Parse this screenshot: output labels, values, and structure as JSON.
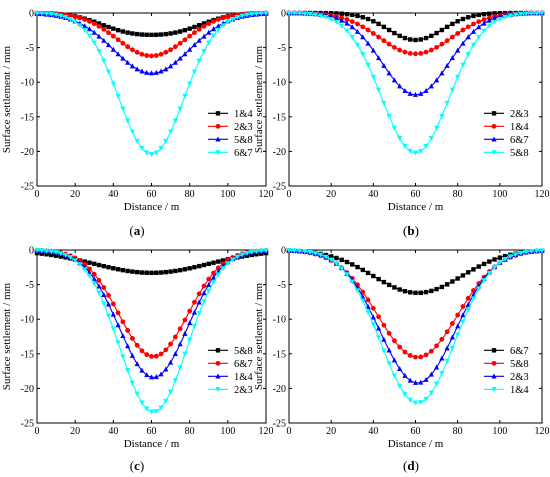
{
  "chart_data": [
    {
      "panel_label": "(a)",
      "type": "line",
      "xlabel": "Distance / m",
      "ylabel": "Surface settlement / mm",
      "xlim": [
        0,
        120
      ],
      "ylim": [
        -25,
        0
      ],
      "xticks": [
        "0",
        "20",
        "40",
        "60",
        "80",
        "100",
        "120"
      ],
      "yticks": [
        "0",
        "-5",
        "-10",
        "-15",
        "-20",
        "-25"
      ],
      "legend_position": "right",
      "series": [
        {
          "name": "1&4",
          "color": "#000000",
          "marker": "square",
          "profile": "double",
          "peak": -2.1,
          "center": 60,
          "width": 18
        },
        {
          "name": "2&3",
          "color": "#ff0000",
          "marker": "circle",
          "profile": "gauss",
          "peak": -6.2,
          "center": 60,
          "width": 18
        },
        {
          "name": "5&8",
          "color": "#0000ff",
          "marker": "triangle",
          "profile": "gauss",
          "peak": -8.7,
          "center": 60,
          "width": 20
        },
        {
          "name": "6&7",
          "color": "#00ffff",
          "marker": "triangle-down",
          "profile": "gauss",
          "peak": -20.4,
          "center": 60,
          "width": 17
        }
      ]
    },
    {
      "panel_label": "(b)",
      "type": "line",
      "xlabel": "Distance / m",
      "ylabel": "Surface settlement / mm",
      "xlim": [
        0,
        120
      ],
      "ylim": [
        -25,
        0
      ],
      "xticks": [
        "0",
        "20",
        "40",
        "60",
        "80",
        "100",
        "120"
      ],
      "yticks": [
        "0",
        "-5",
        "-10",
        "-15",
        "-20",
        "-25"
      ],
      "legend_position": "right",
      "series": [
        {
          "name": "2&3",
          "color": "#000000",
          "marker": "square",
          "profile": "gauss",
          "peak": -3.9,
          "center": 60,
          "width": 13
        },
        {
          "name": "1&4",
          "color": "#ff0000",
          "marker": "circle",
          "profile": "gauss",
          "peak": -5.9,
          "center": 60,
          "width": 17
        },
        {
          "name": "6&7",
          "color": "#0000ff",
          "marker": "triangle",
          "profile": "gauss",
          "peak": -11.8,
          "center": 60,
          "width": 16
        },
        {
          "name": "5&8",
          "color": "#00ffff",
          "marker": "triangle-down",
          "profile": "gauss",
          "peak": -20.2,
          "center": 60,
          "width": 16
        }
      ]
    },
    {
      "panel_label": "(c)",
      "type": "line",
      "xlabel": "Distance / m",
      "ylabel": "Surface settlement / mm",
      "xlim": [
        0,
        120
      ],
      "ylim": [
        -25,
        0
      ],
      "xticks": [
        "0",
        "20",
        "40",
        "60",
        "80",
        "100",
        "120"
      ],
      "yticks": [
        "0",
        "-5",
        "-10",
        "-15",
        "-20",
        "-25"
      ],
      "legend_position": "right",
      "series": [
        {
          "name": "5&8",
          "color": "#000000",
          "marker": "square",
          "profile": "gauss",
          "peak": -3.3,
          "center": 60,
          "width": 30
        },
        {
          "name": "6&7",
          "color": "#ff0000",
          "marker": "circle",
          "profile": "gauss",
          "peak": -15.4,
          "center": 61,
          "width": 18
        },
        {
          "name": "1&4",
          "color": "#0000ff",
          "marker": "triangle",
          "profile": "gauss",
          "peak": -18.4,
          "center": 61,
          "width": 18
        },
        {
          "name": "2&3",
          "color": "#00ffff",
          "marker": "triangle-down",
          "profile": "gauss",
          "peak": -23.4,
          "center": 61,
          "width": 17.5
        }
      ]
    },
    {
      "panel_label": "(d)",
      "type": "line",
      "xlabel": "Distance / m",
      "ylabel": "Surface settlement / mm",
      "xlim": [
        0,
        120
      ],
      "ylim": [
        -25,
        0
      ],
      "xticks": [
        "0",
        "20",
        "40",
        "60",
        "80",
        "100",
        "120"
      ],
      "yticks": [
        "0",
        "-5",
        "-10",
        "-15",
        "-20",
        "-25"
      ],
      "legend_position": "right",
      "series": [
        {
          "name": "6&7",
          "color": "#000000",
          "marker": "square",
          "profile": "gauss",
          "peak": -6.2,
          "center": 61,
          "width": 21
        },
        {
          "name": "5&8",
          "color": "#ff0000",
          "marker": "circle",
          "profile": "gauss",
          "peak": -15.5,
          "center": 61,
          "width": 19
        },
        {
          "name": "2&3",
          "color": "#0000ff",
          "marker": "triangle",
          "profile": "gauss",
          "peak": -19.2,
          "center": 61,
          "width": 18
        },
        {
          "name": "1&4",
          "color": "#00ffff",
          "marker": "triangle-down",
          "profile": "gauss",
          "peak": -22.1,
          "center": 61,
          "width": 17.5
        }
      ]
    }
  ]
}
